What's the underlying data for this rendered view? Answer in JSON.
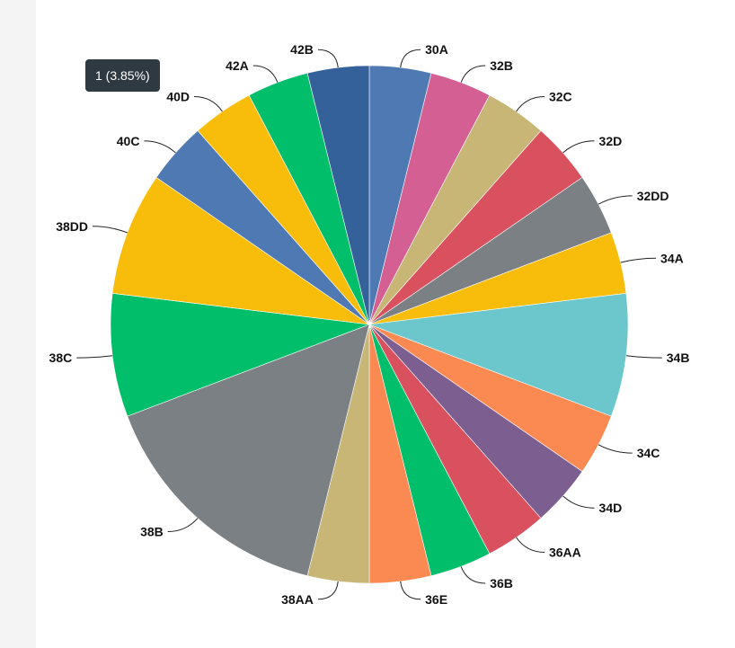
{
  "tooltip": {
    "text": "1 (3.85%)"
  },
  "chart_data": {
    "type": "pie",
    "title": "",
    "legend": "none",
    "slices": [
      {
        "label": "30A",
        "value": 1,
        "color": "#4e79b3"
      },
      {
        "label": "32B",
        "value": 1,
        "color": "#d45f92"
      },
      {
        "label": "32C",
        "value": 1,
        "color": "#c8b676"
      },
      {
        "label": "32D",
        "value": 1,
        "color": "#d9505e"
      },
      {
        "label": "32DD",
        "value": 1,
        "color": "#7b8084"
      },
      {
        "label": "34A",
        "value": 1,
        "color": "#f8bd0a"
      },
      {
        "label": "34B",
        "value": 2,
        "color": "#6bc7cb"
      },
      {
        "label": "34C",
        "value": 1,
        "color": "#fb8a52"
      },
      {
        "label": "34D",
        "value": 1,
        "color": "#7d5e91"
      },
      {
        "label": "36AA",
        "value": 1,
        "color": "#d9505e"
      },
      {
        "label": "36B",
        "value": 1,
        "color": "#00be6a"
      },
      {
        "label": "36E",
        "value": 1,
        "color": "#fb8a52"
      },
      {
        "label": "38AA",
        "value": 1,
        "color": "#c8b676"
      },
      {
        "label": "38B",
        "value": 4,
        "color": "#7b8084"
      },
      {
        "label": "38C",
        "value": 2,
        "color": "#00be6a"
      },
      {
        "label": "38DD",
        "value": 2,
        "color": "#f8bd0a"
      },
      {
        "label": "40C",
        "value": 1,
        "color": "#4e79b3"
      },
      {
        "label": "40D",
        "value": 1,
        "color": "#f8bd0a"
      },
      {
        "label": "42A",
        "value": 1,
        "color": "#00be6a"
      },
      {
        "label": "42B",
        "value": 1,
        "color": "#34619a"
      }
    ]
  }
}
